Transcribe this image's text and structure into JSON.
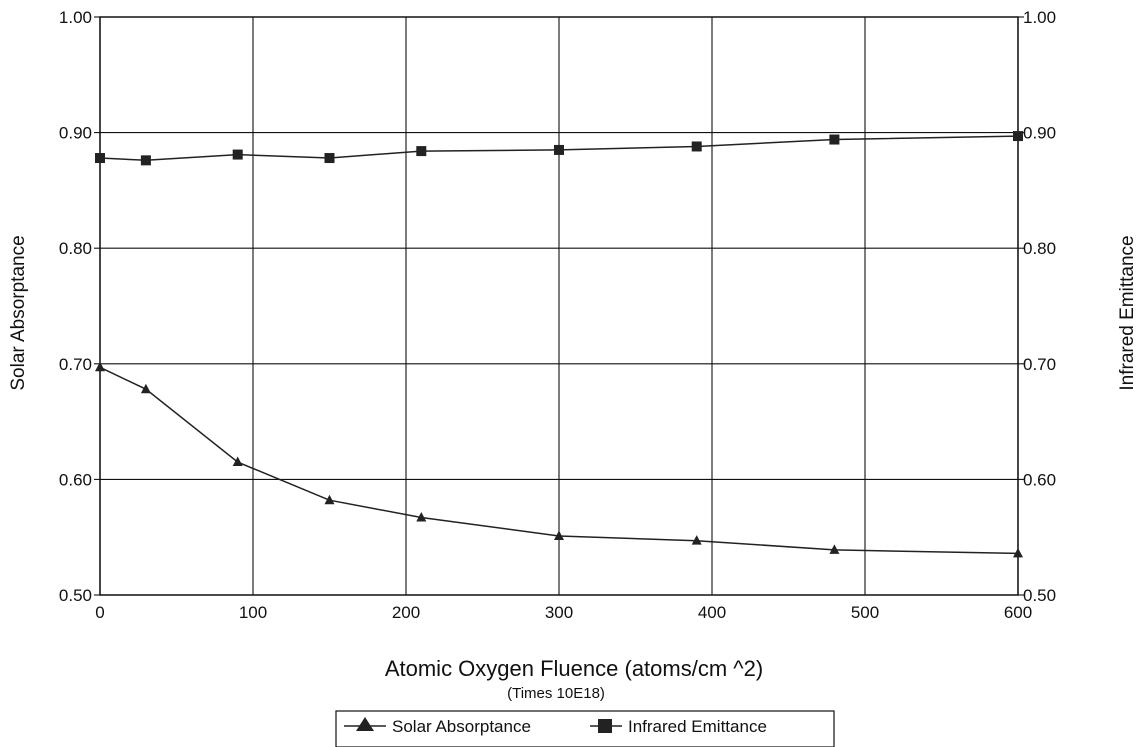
{
  "chart_data": {
    "type": "line",
    "x": [
      0,
      30,
      90,
      150,
      210,
      300,
      390,
      480,
      600
    ],
    "series": [
      {
        "name": "Solar Absorptance",
        "axis": "left",
        "marker": "triangle",
        "values": [
          0.697,
          0.678,
          0.615,
          0.582,
          0.567,
          0.551,
          0.547,
          0.539,
          0.536
        ]
      },
      {
        "name": "Infrared Emittance",
        "axis": "right",
        "marker": "square",
        "values": [
          0.878,
          0.876,
          0.881,
          0.878,
          0.884,
          0.885,
          0.888,
          0.894,
          0.897
        ]
      }
    ],
    "xlabel": "Atomic Oxygen Fluence (atoms/cm ^2)",
    "xlabel_sub": "(Times 10E18)",
    "ylabel": "Solar Absorptance",
    "y2label": "Infrared Emittance",
    "xlim": [
      0,
      600
    ],
    "ylim": [
      0.5,
      1.0
    ],
    "y2lim": [
      0.5,
      1.0
    ],
    "xticks": [
      "0",
      "100",
      "200",
      "300",
      "400",
      "500",
      "600"
    ],
    "yticks": [
      "0.50",
      "0.60",
      "0.70",
      "0.80",
      "0.90",
      "1.00"
    ],
    "y2ticks": [
      "0.50",
      "0.60",
      "0.70",
      "0.80",
      "0.90",
      "1.00"
    ],
    "grid": true,
    "legend_position": "bottom-center",
    "line_color": "#222222"
  }
}
